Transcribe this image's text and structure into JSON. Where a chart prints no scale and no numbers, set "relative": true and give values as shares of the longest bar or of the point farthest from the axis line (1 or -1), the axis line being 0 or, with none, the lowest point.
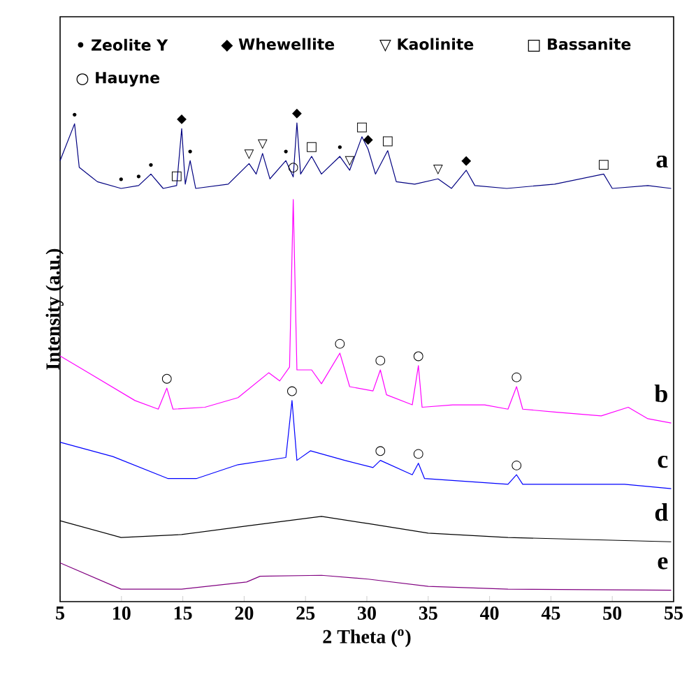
{
  "chart_data": {
    "type": "line",
    "relative": true,
    "xlabel": "2 Theta ($^{o}$)",
    "ylabel": "Intensity (a.u.)",
    "xlim": [
      5,
      55
    ],
    "xticks": [
      5,
      10,
      15,
      20,
      25,
      30,
      35,
      40,
      45,
      50,
      55
    ],
    "grid": false,
    "legend": false,
    "marker": "none",
    "line_style": "solid",
    "series": [
      {
        "name": "a",
        "color": "#000080",
        "x": [
          5.0,
          6.18,
          6.56,
          8.04,
          9.97,
          11.4,
          12.4,
          13.4,
          14.5,
          14.91,
          15.2,
          15.6,
          16.05,
          18.7,
          20.4,
          20.98,
          21.5,
          22.1,
          23.4,
          24.0,
          24.3,
          24.6,
          25.5,
          26.3,
          27.8,
          28.6,
          29.6,
          30.1,
          30.7,
          31.7,
          32.4,
          33.9,
          35.8,
          36.9,
          38.1,
          38.8,
          41.4,
          45.3,
          49.3,
          50.0,
          52.9,
          54.8
        ],
        "values": [
          0.921,
          0.998,
          0.907,
          0.877,
          0.863,
          0.869,
          0.893,
          0.863,
          0.869,
          0.988,
          0.872,
          0.921,
          0.863,
          0.872,
          0.915,
          0.893,
          0.936,
          0.883,
          0.921,
          0.887,
          1.0,
          0.893,
          0.93,
          0.893,
          0.93,
          0.901,
          0.971,
          0.945,
          0.893,
          0.942,
          0.877,
          0.872,
          0.883,
          0.863,
          0.901,
          0.869,
          0.863,
          0.872,
          0.893,
          0.863,
          0.869,
          0.863
        ]
      },
      {
        "name": "b",
        "color": "#ff00ff",
        "x": [
          5.0,
          7.3,
          11.1,
          13.0,
          13.7,
          14.2,
          16.8,
          19.5,
          22.0,
          22.9,
          23.7,
          24.0,
          24.3,
          25.5,
          26.3,
          27.8,
          28.6,
          30.5,
          31.1,
          31.6,
          33.7,
          34.2,
          34.5,
          37.0,
          39.6,
          41.5,
          42.2,
          42.7,
          45.3,
          49.1,
          51.3,
          52.9,
          54.8
        ],
        "values": [
          0.513,
          0.478,
          0.42,
          0.402,
          0.446,
          0.402,
          0.406,
          0.426,
          0.478,
          0.461,
          0.49,
          0.84,
          0.484,
          0.484,
          0.455,
          0.519,
          0.449,
          0.44,
          0.484,
          0.432,
          0.411,
          0.493,
          0.406,
          0.411,
          0.411,
          0.402,
          0.449,
          0.402,
          0.396,
          0.388,
          0.406,
          0.382,
          0.373
        ]
      },
      {
        "name": "c",
        "color": "#0000ff",
        "x": [
          5.0,
          9.3,
          13.8,
          16.1,
          19.5,
          23.4,
          23.9,
          24.3,
          25.4,
          28.2,
          30.5,
          31.1,
          33.7,
          34.2,
          34.7,
          41.5,
          42.2,
          42.7,
          51.0,
          54.8
        ],
        "values": [
          0.333,
          0.303,
          0.257,
          0.257,
          0.286,
          0.301,
          0.42,
          0.295,
          0.315,
          0.295,
          0.28,
          0.295,
          0.265,
          0.289,
          0.257,
          0.245,
          0.265,
          0.245,
          0.245,
          0.236
        ]
      },
      {
        "name": "d",
        "color": "#000000",
        "x": [
          5.0,
          9.97,
          14.9,
          20.2,
          26.3,
          30.1,
          35.0,
          41.5,
          54.8
        ],
        "values": [
          0.169,
          0.134,
          0.14,
          0.158,
          0.178,
          0.163,
          0.143,
          0.134,
          0.125
        ]
      },
      {
        "name": "e",
        "color": "#800080",
        "x": [
          5.0,
          9.97,
          14.9,
          20.2,
          21.3,
          26.3,
          30.1,
          35.0,
          41.5,
          54.8
        ],
        "values": [
          0.081,
          0.026,
          0.026,
          0.041,
          0.053,
          0.055,
          0.047,
          0.032,
          0.026,
          0.024
        ]
      }
    ],
    "annotations": [
      "• Zeolite Y",
      "◆ Whewellite",
      "▽ Kaolinite",
      "□ Bassanite",
      "○ Hauyne",
      {
        "text": "•",
        "x": 6.18,
        "y": 0.998
      },
      {
        "text": "•",
        "x": 9.97,
        "y": 0.863
      },
      {
        "text": "•",
        "x": 11.4,
        "y": 0.869
      },
      {
        "text": "•",
        "x": 12.4,
        "y": 0.893
      },
      {
        "text": "•",
        "x": 15.6,
        "y": 0.921
      },
      {
        "text": "•",
        "x": 23.4,
        "y": 0.921
      },
      {
        "text": "•",
        "x": 27.8,
        "y": 0.93
      },
      {
        "text": "◆",
        "x": 14.91,
        "y": 0.988
      },
      {
        "text": "◆",
        "x": 24.3,
        "y": 1.0
      },
      {
        "text": "◆",
        "x": 30.1,
        "y": 0.945
      },
      {
        "text": "◆",
        "x": 38.1,
        "y": 0.901
      },
      {
        "text": "▽",
        "x": 20.4,
        "y": 0.915
      },
      {
        "text": "▽",
        "x": 21.5,
        "y": 0.936
      },
      {
        "text": "▽",
        "x": 28.6,
        "y": 0.901
      },
      {
        "text": "▽",
        "x": 35.8,
        "y": 0.883
      },
      {
        "text": "□",
        "x": 14.5,
        "y": 0.869
      },
      {
        "text": "□",
        "x": 25.5,
        "y": 0.93
      },
      {
        "text": "□",
        "x": 29.6,
        "y": 0.971
      },
      {
        "text": "□",
        "x": 31.7,
        "y": 0.942
      },
      {
        "text": "□",
        "x": 49.3,
        "y": 0.893
      },
      {
        "text": "○",
        "x": 24.0,
        "y": 0.887
      },
      {
        "text": "○",
        "x": 13.7,
        "y": 0.446
      },
      {
        "text": "○",
        "x": 27.8,
        "y": 0.519
      },
      {
        "text": "○",
        "x": 31.1,
        "y": 0.484
      },
      {
        "text": "○",
        "x": 34.2,
        "y": 0.493
      },
      {
        "text": "○",
        "x": 42.2,
        "y": 0.449
      },
      {
        "text": "○",
        "x": 23.9,
        "y": 0.42
      },
      {
        "text": "○",
        "x": 31.1,
        "y": 0.295
      },
      {
        "text": "○",
        "x": 34.2,
        "y": 0.289
      },
      {
        "text": "○",
        "x": 42.2,
        "y": 0.265
      }
    ]
  }
}
